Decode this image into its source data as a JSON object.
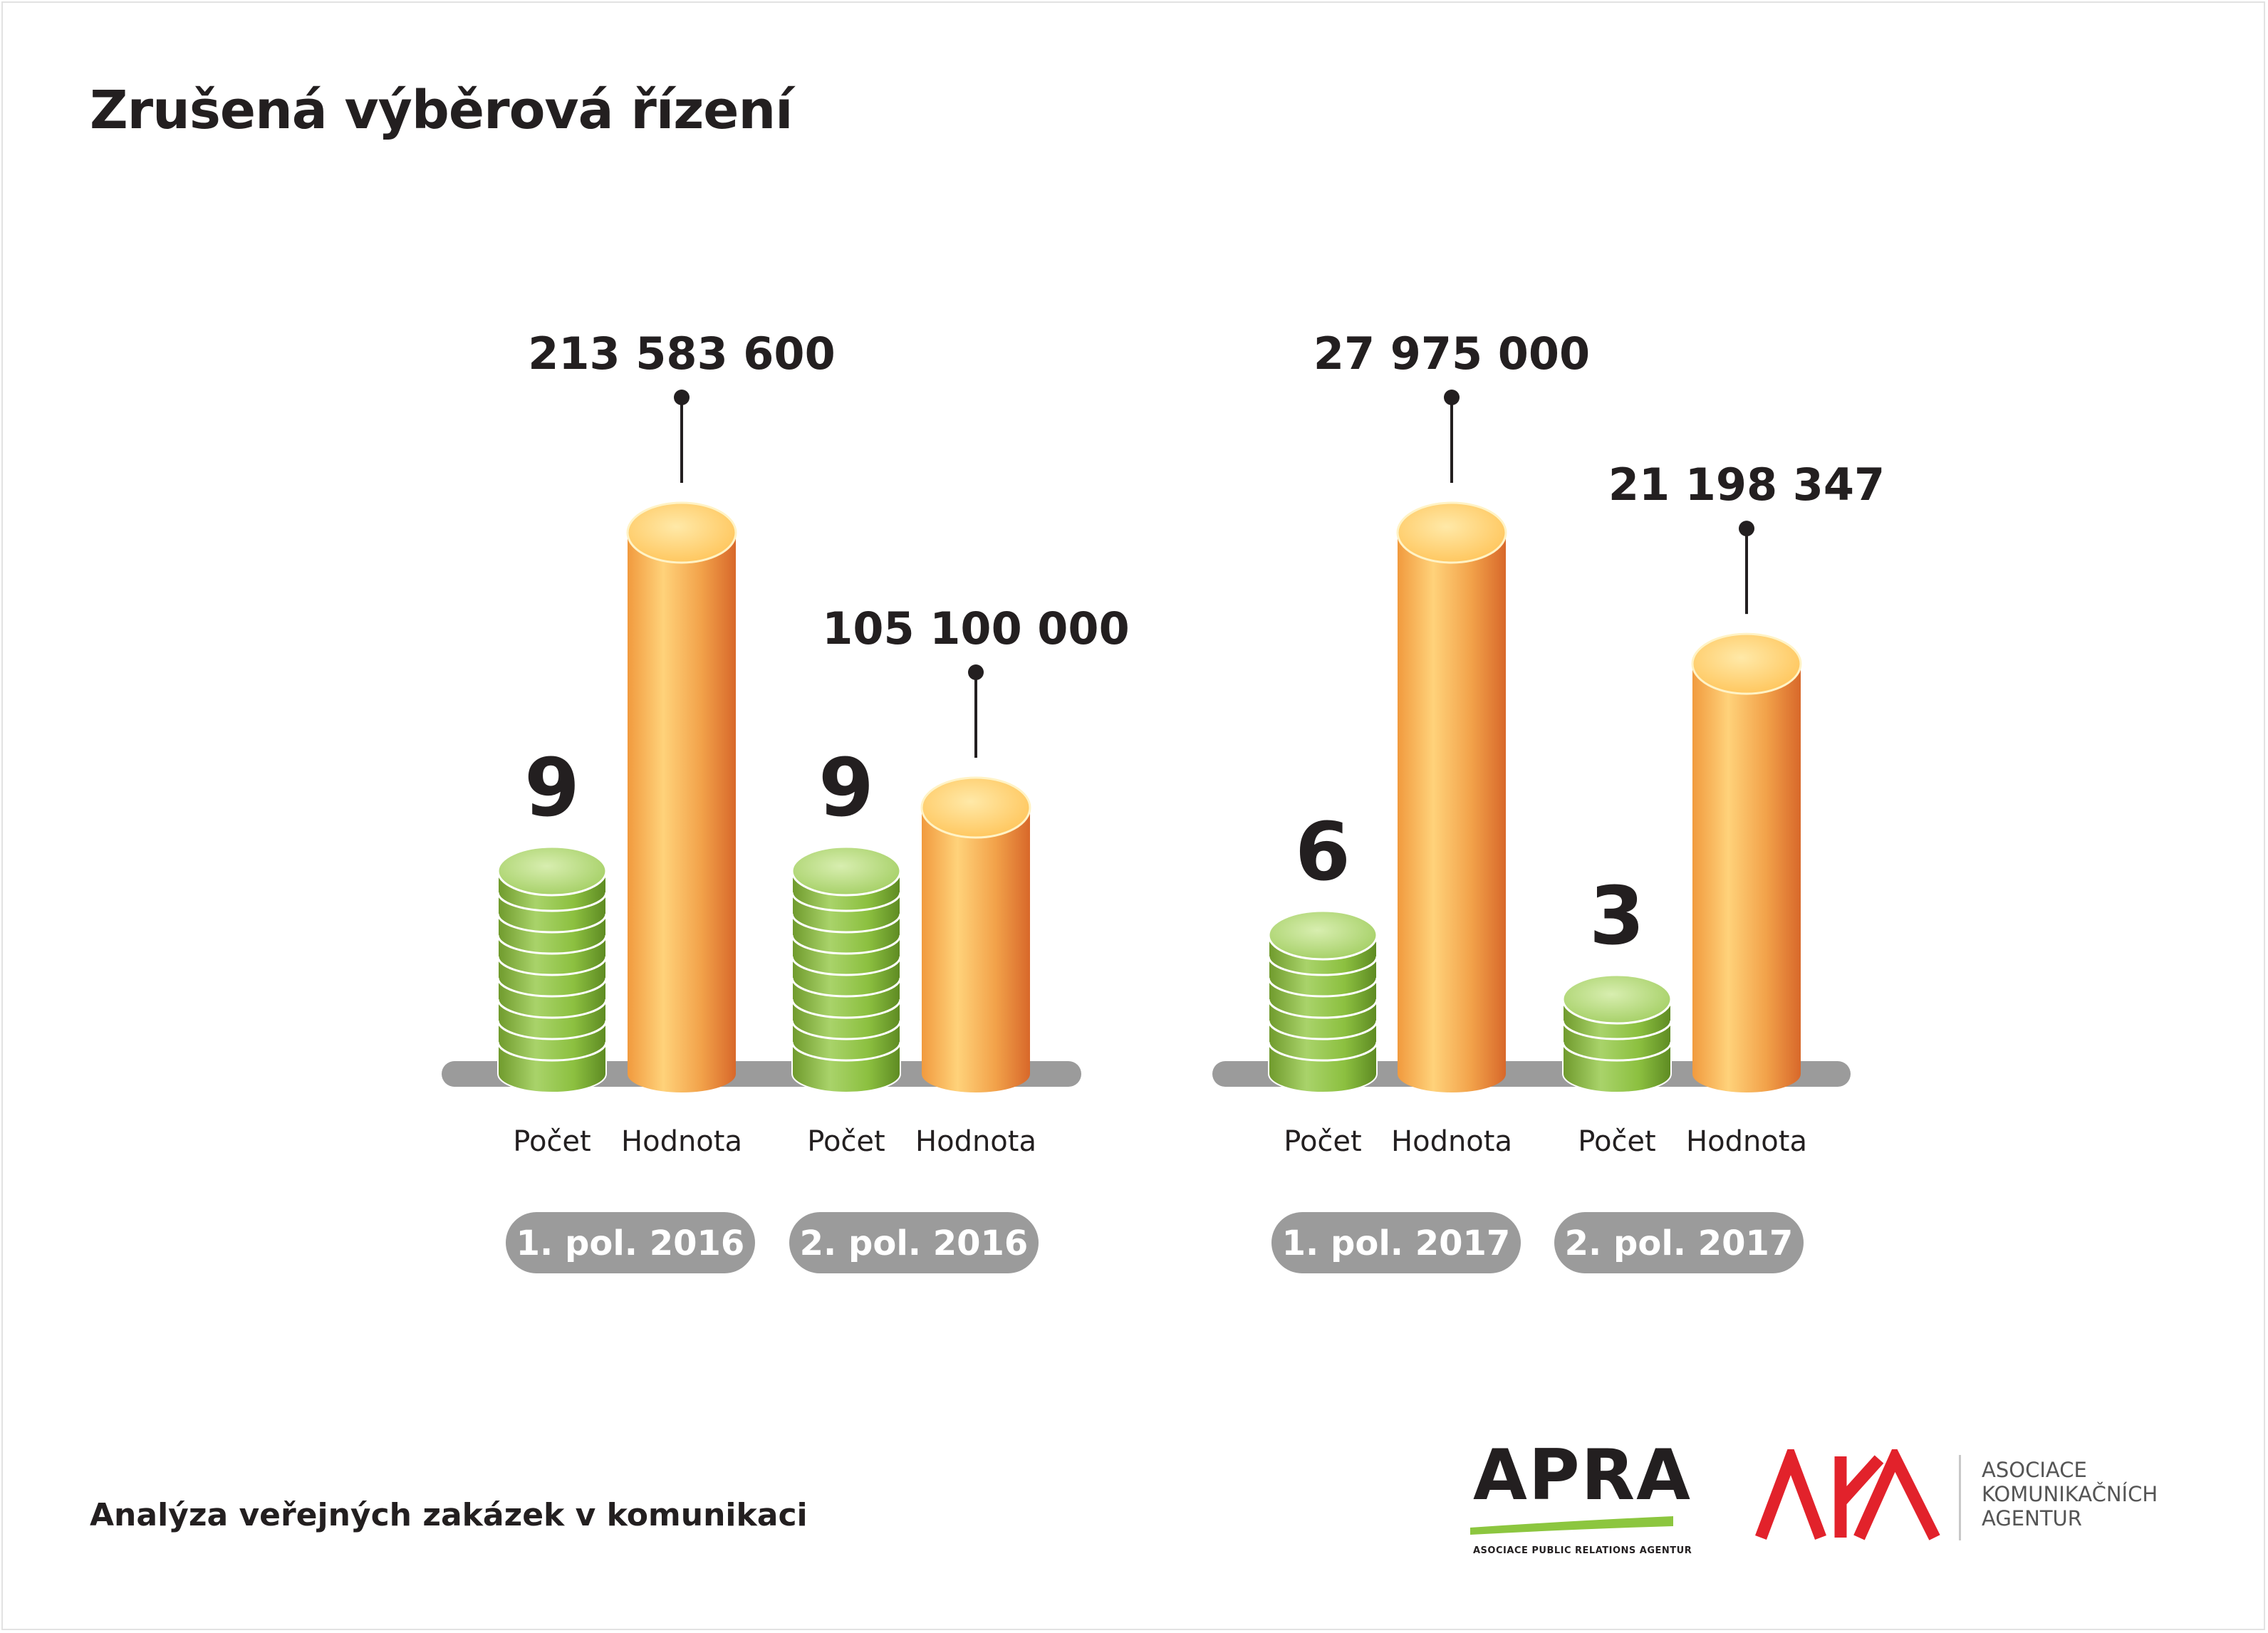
{
  "title": "Zrušená výběrová řízení",
  "footer": "Analýza veřejných zakázek v komunikaci",
  "logos": {
    "apra_name": "APRA",
    "apra_subtitle": "ASOCIACE PUBLIC RELATIONS AGENTUR",
    "aka_name": "AKA",
    "aka_lines": [
      "ASOCIACE",
      "KOMUNIKAČNÍCH",
      "AGENTUR"
    ]
  },
  "colors": {
    "count_bar": "#8cc63f",
    "value_bar": "#f39c3c",
    "baseline": "#9b9b9b",
    "period_pill": "#9b9b9b",
    "text": "#231f20"
  },
  "chart_data": {
    "type": "bar",
    "categories": [
      "1. pol. 2016",
      "2. pol. 2016",
      "1. pol. 2017",
      "2. pol. 2017"
    ],
    "series": [
      {
        "name": "Počet",
        "values": [
          9,
          9,
          6,
          3
        ],
        "labels": [
          "9",
          "9",
          "6",
          "3"
        ]
      },
      {
        "name": "Hodnota",
        "values": [
          213583600,
          105100000,
          27975000,
          21198347
        ],
        "labels": [
          "213 583 600",
          "105 100 000",
          "27 975 000",
          "21 198 347"
        ]
      }
    ],
    "bar_labels": [
      "Počet",
      "Hodnota"
    ],
    "groups": [
      {
        "years": "2016",
        "periods": [
          "1. pol. 2016",
          "2. pol. 2016"
        ]
      },
      {
        "years": "2017",
        "periods": [
          "1. pol. 2017",
          "2. pol. 2017"
        ]
      }
    ],
    "scale_note": "Hodnota bars are scaled independently within each year group (non-uniform axis, no gridlines, no legend)",
    "grid": false,
    "legend": "none"
  }
}
